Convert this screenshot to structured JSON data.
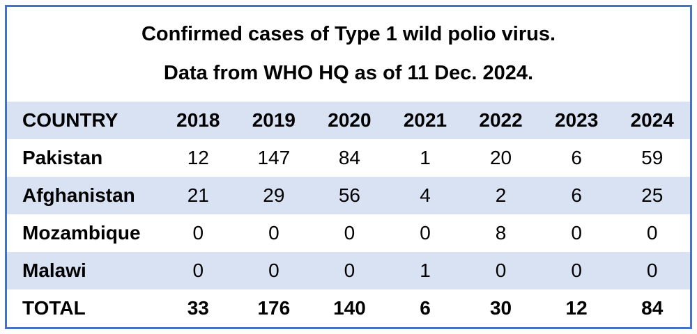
{
  "colors": {
    "border": "#4472C4",
    "band": "#D9E2F3",
    "background": "#FFFFFF",
    "text": "#000000"
  },
  "title": {
    "line1": "Confirmed cases of Type 1 wild polio virus.",
    "line2": "Data from WHO HQ as of 11 Dec. 2024."
  },
  "table": {
    "header": [
      "COUNTRY",
      "2018",
      "2019",
      "2020",
      "2021",
      "2022",
      "2023",
      "2024"
    ],
    "rows": [
      [
        "Pakistan",
        "12",
        "147",
        "84",
        "1",
        "20",
        "6",
        "59"
      ],
      [
        "Afghanistan",
        "21",
        "29",
        "56",
        "4",
        "2",
        "6",
        "25"
      ],
      [
        "Mozambique",
        "0",
        "0",
        "0",
        "0",
        "8",
        "0",
        "0"
      ],
      [
        "Malawi",
        "0",
        "0",
        "0",
        "1",
        "0",
        "0",
        "0"
      ],
      [
        "TOTAL",
        "33",
        "176",
        "140",
        "6",
        "30",
        "12",
        "84"
      ]
    ]
  },
  "chart_data": {
    "type": "table",
    "title": "Confirmed cases of Type 1 wild polio virus.",
    "subtitle": "Data from WHO HQ as of 11 Dec. 2024.",
    "columns": [
      "COUNTRY",
      "2018",
      "2019",
      "2020",
      "2021",
      "2022",
      "2023",
      "2024"
    ],
    "categories": [
      "2018",
      "2019",
      "2020",
      "2021",
      "2022",
      "2023",
      "2024"
    ],
    "series": [
      {
        "name": "Pakistan",
        "values": [
          12,
          147,
          84,
          1,
          20,
          6,
          59
        ]
      },
      {
        "name": "Afghanistan",
        "values": [
          21,
          29,
          56,
          4,
          2,
          6,
          25
        ]
      },
      {
        "name": "Mozambique",
        "values": [
          0,
          0,
          0,
          0,
          8,
          0,
          0
        ]
      },
      {
        "name": "Malawi",
        "values": [
          0,
          0,
          0,
          1,
          0,
          0,
          0
        ]
      },
      {
        "name": "TOTAL",
        "values": [
          33,
          176,
          140,
          6,
          30,
          12,
          84
        ]
      }
    ],
    "layout_hints": {
      "banded_rows": true,
      "band_color": "#D9E2F3",
      "border_color": "#4472C4",
      "header_background": "#D9E2F3",
      "grid": false
    }
  }
}
